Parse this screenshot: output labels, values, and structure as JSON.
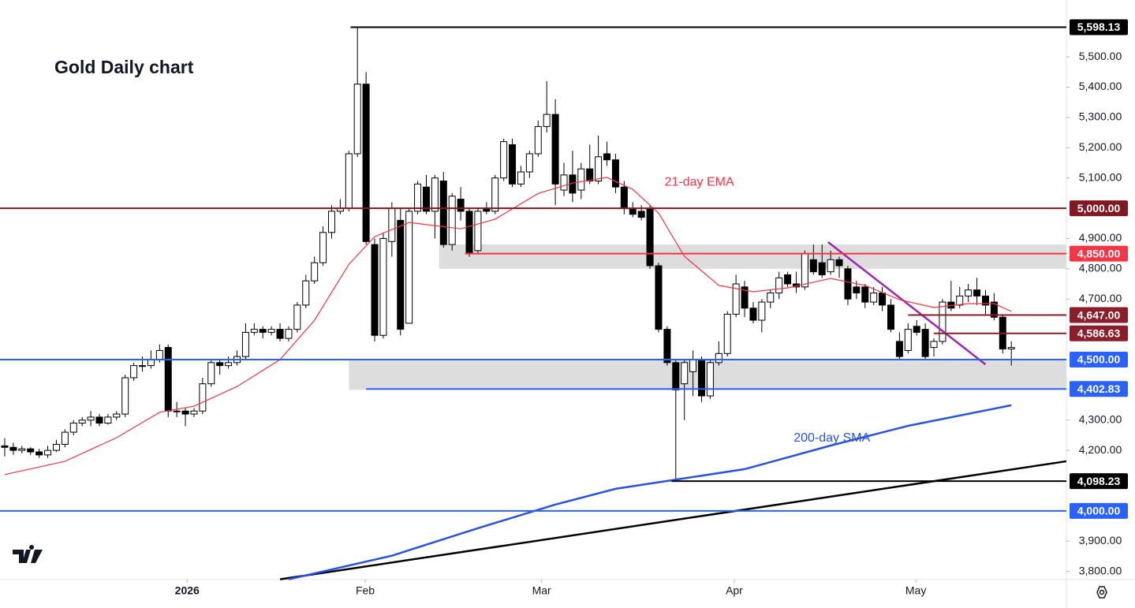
{
  "chart_data": {
    "type": "candlestick",
    "title": "Gold Daily chart",
    "up_color": "#ffffff",
    "down_color": "#000000",
    "ylim": [
      3773,
      5688
    ],
    "xlim": [
      -0.55,
      123.4
    ],
    "yticks": [
      {
        "value": 3800,
        "label": "3,800.00"
      },
      {
        "value": 3900,
        "label": "3,900.00"
      },
      {
        "value": 4200,
        "label": "4,200.00"
      },
      {
        "value": 4300,
        "label": "4,300.00"
      },
      {
        "value": 4700,
        "label": "4,700.00"
      },
      {
        "value": 4800,
        "label": "4,800.00"
      },
      {
        "value": 4900,
        "label": "4,900.00"
      },
      {
        "value": 5100,
        "label": "5,100.00"
      },
      {
        "value": 5200,
        "label": "5,200.00"
      },
      {
        "value": 5300,
        "label": "5,300.00"
      },
      {
        "value": 5400,
        "label": "5,400.00"
      },
      {
        "value": 5500,
        "label": "5,500.00"
      }
    ],
    "xticks": [
      {
        "value": 21.2,
        "label": "2026"
      },
      {
        "value": 41.9,
        "label": "Feb"
      },
      {
        "value": 62.4,
        "label": "Mar"
      },
      {
        "value": 84.8,
        "label": "Apr"
      },
      {
        "value": 105.9,
        "label": "May"
      }
    ],
    "candles": [
      [
        4215,
        4240,
        4180,
        4210
      ],
      [
        4210,
        4225,
        4185,
        4200
      ],
      [
        4200,
        4215,
        4190,
        4205
      ],
      [
        4205,
        4210,
        4185,
        4195
      ],
      [
        4195,
        4205,
        4175,
        4185
      ],
      [
        4185,
        4215,
        4175,
        4200
      ],
      [
        4200,
        4235,
        4195,
        4220
      ],
      [
        4220,
        4270,
        4210,
        4260
      ],
      [
        4260,
        4300,
        4250,
        4290
      ],
      [
        4290,
        4310,
        4280,
        4300
      ],
      [
        4300,
        4330,
        4280,
        4310
      ],
      [
        4310,
        4320,
        4280,
        4290
      ],
      [
        4290,
        4320,
        4285,
        4310
      ],
      [
        4310,
        4330,
        4300,
        4320
      ],
      [
        4320,
        4450,
        4310,
        4440
      ],
      [
        4440,
        4490,
        4430,
        4480
      ],
      [
        4480,
        4510,
        4460,
        4480
      ],
      [
        4480,
        4530,
        4470,
        4500
      ],
      [
        4500,
        4550,
        4490,
        4530
      ],
      [
        4540,
        4550,
        4310,
        4330
      ],
      [
        4330,
        4360,
        4310,
        4330
      ],
      [
        4330,
        4340,
        4280,
        4320
      ],
      [
        4320,
        4340,
        4310,
        4330
      ],
      [
        4330,
        4440,
        4320,
        4420
      ],
      [
        4420,
        4500,
        4410,
        4490
      ],
      [
        4490,
        4500,
        4450,
        4480
      ],
      [
        4480,
        4510,
        4470,
        4490
      ],
      [
        4490,
        4530,
        4480,
        4510
      ],
      [
        4510,
        4620,
        4500,
        4590
      ],
      [
        4590,
        4620,
        4580,
        4600
      ],
      [
        4600,
        4610,
        4570,
        4590
      ],
      [
        4590,
        4610,
        4580,
        4600
      ],
      [
        4600,
        4620,
        4560,
        4570
      ],
      [
        4570,
        4610,
        4560,
        4600
      ],
      [
        4600,
        4690,
        4590,
        4680
      ],
      [
        4680,
        4780,
        4670,
        4760
      ],
      [
        4760,
        4840,
        4750,
        4820
      ],
      [
        4820,
        4940,
        4810,
        4920
      ],
      [
        4920,
        5010,
        4900,
        4990
      ],
      [
        4990,
        5030,
        4980,
        5000
      ],
      [
        5000,
        5190,
        4990,
        5180
      ],
      [
        5180,
        5598.13,
        5170,
        5410
      ],
      [
        5410,
        5450,
        4880,
        4890
      ],
      [
        4880,
        4900,
        4560,
        4580
      ],
      [
        4580,
        4920,
        4570,
        4900
      ],
      [
        4890,
        5020,
        4840,
        5000
      ],
      [
        4960,
        5000,
        4580,
        4600
      ],
      [
        4620,
        5000,
        4620,
        4990
      ],
      [
        4990,
        5090,
        4980,
        5080
      ],
      [
        5070,
        5110,
        4980,
        4990
      ],
      [
        4990,
        5110,
        4900,
        5100
      ],
      [
        5090,
        5120,
        4870,
        4880
      ],
      [
        4880,
        5050,
        4860,
        5040
      ],
      [
        5030,
        5070,
        4960,
        4990
      ],
      [
        4990,
        5000,
        4840,
        4850
      ],
      [
        4860,
        5000,
        4850,
        4990
      ],
      [
        5000,
        5020,
        4980,
        4990
      ],
      [
        4990,
        5110,
        4980,
        5100
      ],
      [
        5100,
        5230,
        5090,
        5220
      ],
      [
        5210,
        5230,
        5070,
        5080
      ],
      [
        5080,
        5140,
        5070,
        5120
      ],
      [
        5120,
        5190,
        5100,
        5180
      ],
      [
        5180,
        5290,
        5170,
        5270
      ],
      [
        5270,
        5420,
        5250,
        5310
      ],
      [
        5310,
        5360,
        5010,
        5080
      ],
      [
        5060,
        5150,
        5040,
        5110
      ],
      [
        5110,
        5190,
        5020,
        5050
      ],
      [
        5060,
        5150,
        5030,
        5130
      ],
      [
        5130,
        5210,
        5080,
        5090
      ],
      [
        5090,
        5240,
        5080,
        5170
      ],
      [
        5180,
        5220,
        5140,
        5160
      ],
      [
        5160,
        5180,
        5050,
        5070
      ],
      [
        5070,
        5090,
        4980,
        5000
      ],
      [
        5000,
        5020,
        4970,
        4980
      ],
      [
        4990,
        5010,
        4960,
        4970
      ],
      [
        5000,
        5010,
        4800,
        4810
      ],
      [
        4810,
        4820,
        4590,
        4600
      ],
      [
        4600,
        4610,
        4480,
        4490
      ],
      [
        4490,
        4500,
        4098.23,
        4400
      ],
      [
        4420,
        4500,
        4300,
        4490
      ],
      [
        4460,
        4530,
        4380,
        4500
      ],
      [
        4500,
        4510,
        4360,
        4380
      ],
      [
        4380,
        4500,
        4370,
        4490
      ],
      [
        4490,
        4560,
        4480,
        4520
      ],
      [
        4520,
        4660,
        4510,
        4650
      ],
      [
        4650,
        4780,
        4640,
        4750
      ],
      [
        4740,
        4760,
        4640,
        4670
      ],
      [
        4670,
        4690,
        4620,
        4630
      ],
      [
        4630,
        4700,
        4590,
        4690
      ],
      [
        4690,
        4730,
        4670,
        4720
      ],
      [
        4720,
        4790,
        4700,
        4770
      ],
      [
        4780,
        4790,
        4740,
        4750
      ],
      [
        4750,
        4790,
        4720,
        4740
      ],
      [
        4740,
        4860,
        4730,
        4850
      ],
      [
        4830,
        4880,
        4780,
        4790
      ],
      [
        4820,
        4880,
        4770,
        4780
      ],
      [
        4790,
        4860,
        4780,
        4830
      ],
      [
        4830,
        4840,
        4770,
        4810
      ],
      [
        4800,
        4810,
        4680,
        4700
      ],
      [
        4740,
        4760,
        4700,
        4720
      ],
      [
        4740,
        4750,
        4670,
        4690
      ],
      [
        4690,
        4740,
        4680,
        4720
      ],
      [
        4720,
        4740,
        4660,
        4680
      ],
      [
        4680,
        4700,
        4590,
        4600
      ],
      [
        4560,
        4590,
        4500,
        4510
      ],
      [
        4530,
        4620,
        4520,
        4600
      ],
      [
        4610,
        4630,
        4580,
        4590
      ],
      [
        4600,
        4620,
        4500,
        4510
      ],
      [
        4540,
        4570,
        4510,
        4560
      ],
      [
        4560,
        4700,
        4550,
        4690
      ],
      [
        4690,
        4760,
        4660,
        4670
      ],
      [
        4680,
        4740,
        4670,
        4710
      ],
      [
        4710,
        4750,
        4690,
        4730
      ],
      [
        4730,
        4770,
        4680,
        4710
      ],
      [
        4710,
        4730,
        4650,
        4680
      ],
      [
        4690,
        4720,
        4630,
        4640
      ],
      [
        4640,
        4650,
        4520,
        4535
      ],
      [
        4535,
        4560,
        4480,
        4540
      ]
    ],
    "lines": [
      {
        "name": "21-day EMA",
        "color": "#f23645",
        "points": [
          [
            0,
            4120
          ],
          [
            7,
            4164
          ],
          [
            13,
            4242
          ],
          [
            18,
            4326
          ],
          [
            22,
            4346
          ],
          [
            27,
            4411
          ],
          [
            32,
            4500
          ],
          [
            36,
            4630
          ],
          [
            40,
            4815
          ],
          [
            43,
            4906
          ],
          [
            47,
            4953
          ],
          [
            53,
            4932
          ],
          [
            57,
            4964
          ],
          [
            62,
            5049
          ],
          [
            66,
            5083
          ],
          [
            70,
            5102
          ],
          [
            73,
            5062
          ],
          [
            76,
            4984
          ],
          [
            79,
            4841
          ],
          [
            83,
            4745
          ],
          [
            87,
            4724
          ],
          [
            91,
            4737
          ],
          [
            96,
            4768
          ],
          [
            100,
            4745
          ],
          [
            104,
            4698
          ],
          [
            108,
            4672
          ],
          [
            112,
            4685
          ],
          [
            115,
            4685
          ],
          [
            117,
            4659
          ]
        ]
      },
      {
        "name": "200-day SMA",
        "color": "#2952e3",
        "points": [
          [
            33,
            3774
          ],
          [
            45,
            3852
          ],
          [
            55,
            3943
          ],
          [
            64,
            4021
          ],
          [
            71,
            4073
          ],
          [
            77,
            4099
          ],
          [
            86,
            4138
          ],
          [
            96,
            4216
          ],
          [
            105,
            4281
          ],
          [
            117,
            4349
          ]
        ]
      }
    ],
    "trendlines": [
      {
        "color": "#000000",
        "points": [
          [
            32,
            3774
          ],
          [
            123.4,
            4164
          ]
        ]
      },
      {
        "color": "#9c27b0",
        "points": [
          [
            95.7,
            4888
          ],
          [
            114,
            4484
          ]
        ]
      }
    ],
    "zones": [
      {
        "top": 4880,
        "bottom": 4800,
        "from": 50.5
      },
      {
        "top": 4500,
        "bottom": 4400,
        "from": 40
      }
    ],
    "levels": [
      {
        "value": 5598.13,
        "label": "5,598.13",
        "color": "#000000",
        "from": 40.2
      },
      {
        "value": 5000,
        "label": "5,000.00",
        "color": "#801922",
        "from": -0.55
      },
      {
        "value": 4850,
        "label": "4,850.00",
        "color": "#f23645",
        "from": 53.5
      },
      {
        "value": 4647,
        "label": "4,647.00",
        "color": "#8b1e2b",
        "from": 105
      },
      {
        "value": 4586.63,
        "label": "4,586.63",
        "color": "#8b1e2b",
        "from": 108
      },
      {
        "value": 4500,
        "label": "4,500.00",
        "color": "#2962ff",
        "from": -0.55
      },
      {
        "value": 4402.83,
        "label": "4,402.83",
        "color": "#2962ff",
        "from": 42
      },
      {
        "value": 4098.23,
        "label": "4,098.23",
        "color": "#000000",
        "from": 77.5
      },
      {
        "value": 4000,
        "label": "4,000.00",
        "color": "#2962ff",
        "from": -0.55
      }
    ],
    "annotations": [
      {
        "text": "21-day EMA",
        "color": "#f23645",
        "x": 76.7,
        "y": 5085
      },
      {
        "text": "200-day SMA",
        "color": "#2952e3",
        "x": 91.7,
        "y": 4240
      }
    ]
  }
}
